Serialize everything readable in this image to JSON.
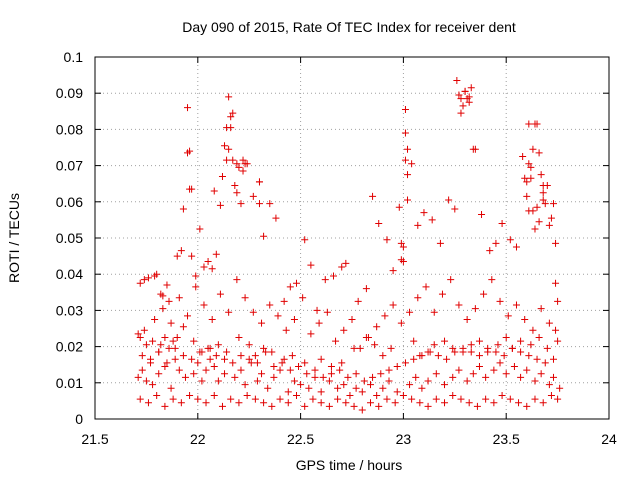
{
  "chart_data": {
    "type": "scatter",
    "title": "Day 090 of 2015, Rate Of TEC Index for receiver dent",
    "xlabel": "GPS time / hours",
    "ylabel": "ROTI / TECUs",
    "xlim": [
      21.5,
      24
    ],
    "ylim": [
      0,
      0.1
    ],
    "xticks": [
      "21.5",
      "22",
      "22.5",
      "23",
      "23.5",
      "24"
    ],
    "xtick_values": [
      21.5,
      22,
      22.5,
      23,
      23.5,
      24
    ],
    "yticks": [
      "0",
      "0.01",
      "0.02",
      "0.03",
      "0.04",
      "0.05",
      "0.06",
      "0.07",
      "0.08",
      "0.09",
      "0.1"
    ],
    "ytick_values": [
      0,
      0.01,
      0.02,
      0.03,
      0.04,
      0.05,
      0.06,
      0.07,
      0.08,
      0.09,
      0.1
    ],
    "grid": true,
    "marker": "+",
    "color": "#e00000",
    "series": [
      {
        "name": "ROTI",
        "x": [
          21.72,
          21.74,
          21.76,
          21.79,
          21.8,
          21.82,
          21.83,
          21.85,
          21.86,
          21.9,
          21.92,
          21.93,
          21.95,
          21.96,
          21.97,
          21.99,
          22.01,
          22.03,
          22.05,
          22.07,
          22.09,
          22.11,
          22.12,
          22.14,
          22.15,
          22.16,
          22.17,
          22.19,
          22.2,
          22.22,
          22.24,
          22.27,
          22.3,
          22.32,
          22.35,
          22.38,
          22.42,
          22.45,
          22.48,
          22.52,
          22.55,
          22.58,
          22.62,
          22.66,
          22.7,
          22.72,
          22.78,
          22.82,
          22.85,
          22.88,
          22.92,
          22.95,
          22.98,
          23.0,
          23.01,
          23.02,
          23.04,
          23.07,
          23.1,
          23.14,
          23.18,
          23.22,
          23.25,
          23.28,
          23.3,
          23.32,
          23.35,
          23.38,
          23.42,
          23.45,
          23.48,
          23.52,
          23.55,
          23.58,
          23.61,
          23.63,
          23.65,
          23.68,
          23.7,
          23.72,
          23.74,
          23.75,
          21.71,
          21.73,
          21.75,
          21.77,
          21.78,
          21.81,
          21.84,
          21.87,
          21.89,
          21.91,
          21.94,
          21.98,
          22.0,
          22.02,
          22.04,
          22.06,
          22.08,
          22.1,
          22.13,
          22.18,
          22.21,
          22.23,
          22.26,
          22.29,
          22.31,
          22.34,
          22.37,
          22.4,
          22.44,
          22.47,
          22.5,
          22.54,
          22.57,
          22.6,
          22.64,
          22.68,
          22.71,
          22.74,
          22.77,
          22.8,
          22.84,
          22.87,
          22.9,
          22.93,
          22.97,
          23.03,
          23.06,
          23.09,
          23.12,
          23.16,
          23.2,
          23.24,
          23.27,
          23.31,
          23.34,
          23.37,
          23.4,
          23.44,
          23.47,
          23.5,
          23.54,
          23.57,
          23.6,
          23.64,
          23.67,
          23.71,
          23.73,
          23.76,
          21.72,
          21.76,
          21.8,
          21.84,
          21.88,
          21.92,
          21.96,
          22.0,
          22.04,
          22.08,
          22.12,
          22.16,
          22.2,
          22.24,
          22.28,
          22.32,
          22.36,
          22.4,
          22.44,
          22.48,
          22.52,
          22.56,
          22.6,
          22.64,
          22.68,
          22.72,
          22.76,
          22.8,
          22.84,
          22.88,
          22.92,
          22.96,
          23.0,
          23.04,
          23.08,
          23.12,
          23.16,
          23.2,
          23.24,
          23.28,
          23.32,
          23.36,
          23.4,
          23.44,
          23.48,
          23.52,
          23.56,
          23.6,
          23.64,
          23.68,
          23.72,
          23.75,
          21.73,
          21.77,
          21.81,
          21.85,
          21.89,
          21.93,
          21.97,
          22.01,
          22.05,
          22.09,
          22.13,
          22.17,
          22.21,
          22.25,
          22.29,
          22.33,
          22.37,
          22.41,
          22.45,
          22.49,
          22.53,
          22.57,
          22.61,
          22.65,
          22.69,
          22.73,
          22.77,
          22.81,
          22.85,
          22.89,
          22.93,
          22.97,
          23.01,
          23.05,
          23.09,
          23.13,
          23.17,
          23.21,
          23.25,
          23.29,
          23.33,
          23.37,
          23.41,
          23.45,
          23.49,
          23.53,
          23.57,
          23.61,
          23.65,
          23.69,
          23.73,
          21.74,
          21.79,
          21.83,
          21.87,
          21.91,
          21.95,
          21.99,
          22.03,
          22.07,
          22.11,
          22.15,
          22.19,
          22.23,
          22.27,
          22.31,
          22.35,
          22.39,
          22.43,
          22.47,
          22.51,
          22.55,
          22.59,
          22.63,
          22.67,
          22.71,
          22.75,
          22.79,
          22.83,
          22.87,
          22.91,
          22.95,
          22.99,
          23.03,
          23.07,
          23.11,
          23.15,
          23.19,
          23.23,
          23.27,
          23.31,
          23.35,
          23.39,
          23.43,
          23.47,
          23.51,
          23.55,
          23.59,
          23.63,
          23.67,
          23.71,
          23.74,
          21.95,
          21.96,
          21.97,
          22.08,
          22.13,
          22.14,
          22.15,
          22.16,
          22.17,
          22.18,
          22.19,
          22.21,
          22.22,
          22.23,
          22.3,
          22.3,
          22.99,
          22.99,
          23.0,
          23.01,
          23.01,
          23.02,
          23.02,
          23.26,
          23.27,
          23.28,
          23.29,
          23.3,
          23.31,
          23.32,
          23.33,
          23.34,
          23.59,
          23.6,
          23.61,
          23.62,
          23.62,
          23.63,
          23.64,
          23.65,
          23.66,
          23.67,
          23.68,
          23.68,
          23.6,
          23.61,
          23.64,
          23.66,
          23.69,
          23.71,
          23.73,
          23.74,
          21.71,
          21.72,
          21.75,
          21.78,
          21.81,
          21.82,
          21.84,
          21.86,
          21.88,
          21.9,
          21.93,
          21.98,
          22.02,
          22.06,
          22.1,
          22.14,
          22.2,
          22.25,
          22.28,
          22.32,
          22.36,
          22.42,
          22.46,
          22.52,
          22.6,
          22.65,
          22.7,
          22.76,
          22.82,
          22.86,
          22.9,
          22.94,
          23.05,
          23.08,
          23.12,
          23.15,
          23.2,
          23.24,
          23.29,
          23.33,
          23.37,
          23.41,
          23.46,
          23.5,
          23.53,
          23.57,
          23.62,
          23.66,
          23.7,
          23.75
        ],
        "y": [
          0.0375,
          0.0385,
          0.039,
          0.0395,
          0.04,
          0.0345,
          0.034,
          0.037,
          0.0325,
          0.045,
          0.0465,
          0.058,
          0.0735,
          0.0635,
          0.045,
          0.0395,
          0.0525,
          0.042,
          0.0435,
          0.0415,
          0.0455,
          0.059,
          0.067,
          0.0715,
          0.0745,
          0.0805,
          0.0845,
          0.0705,
          0.0695,
          0.0715,
          0.0705,
          0.0615,
          0.0655,
          0.0505,
          0.0595,
          0.0555,
          0.0325,
          0.0365,
          0.0375,
          0.0495,
          0.0425,
          0.03,
          0.0385,
          0.0395,
          0.042,
          0.043,
          0.0325,
          0.036,
          0.0615,
          0.054,
          0.0495,
          0.041,
          0.0585,
          0.0475,
          0.079,
          0.0745,
          0.0705,
          0.0535,
          0.057,
          0.055,
          0.0485,
          0.0605,
          0.058,
          0.0845,
          0.0905,
          0.089,
          0.0745,
          0.0565,
          0.0465,
          0.0485,
          0.054,
          0.0495,
          0.0475,
          0.0725,
          0.0815,
          0.0745,
          0.0585,
          0.0625,
          0.0645,
          0.0555,
          0.0375,
          0.0325,
          0.0115,
          0.0135,
          0.0105,
          0.0155,
          0.0095,
          0.0125,
          0.0145,
          0.0085,
          0.0165,
          0.0135,
          0.0115,
          0.0125,
          0.0155,
          0.0105,
          0.0135,
          0.0165,
          0.0145,
          0.0105,
          0.0125,
          0.0115,
          0.0135,
          0.0095,
          0.0155,
          0.0105,
          0.0125,
          0.0085,
          0.0115,
          0.0135,
          0.0075,
          0.0105,
          0.0095,
          0.0085,
          0.0115,
          0.0075,
          0.0105,
          0.0085,
          0.0095,
          0.0065,
          0.0085,
          0.0075,
          0.0095,
          0.0065,
          0.0085,
          0.0105,
          0.0075,
          0.0095,
          0.0115,
          0.0085,
          0.0105,
          0.0125,
          0.0095,
          0.0115,
          0.0135,
          0.0105,
          0.0125,
          0.0145,
          0.0115,
          0.0135,
          0.0155,
          0.0125,
          0.0145,
          0.0115,
          0.0135,
          0.0105,
          0.0125,
          0.0095,
          0.0115,
          0.0085,
          0.0055,
          0.0045,
          0.0065,
          0.0035,
          0.0055,
          0.0045,
          0.0065,
          0.0055,
          0.0045,
          0.0065,
          0.0035,
          0.0055,
          0.0045,
          0.0065,
          0.0055,
          0.0045,
          0.0035,
          0.0055,
          0.0045,
          0.0065,
          0.0035,
          0.0055,
          0.0045,
          0.0035,
          0.0055,
          0.0045,
          0.0035,
          0.0025,
          0.0045,
          0.0035,
          0.0055,
          0.0045,
          0.0065,
          0.0055,
          0.0045,
          0.0035,
          0.0055,
          0.0045,
          0.0065,
          0.0055,
          0.0045,
          0.0035,
          0.0055,
          0.0045,
          0.0065,
          0.0055,
          0.0045,
          0.0035,
          0.0055,
          0.0045,
          0.0065,
          0.0055,
          0.0175,
          0.0165,
          0.0185,
          0.0155,
          0.0195,
          0.0175,
          0.0165,
          0.0185,
          0.0195,
          0.0175,
          0.0165,
          0.0155,
          0.0175,
          0.0165,
          0.0155,
          0.0185,
          0.0145,
          0.0155,
          0.0135,
          0.0145,
          0.0125,
          0.0135,
          0.0115,
          0.0125,
          0.0135,
          0.0115,
          0.0125,
          0.0105,
          0.0115,
          0.0125,
          0.0135,
          0.0145,
          0.0155,
          0.0165,
          0.0175,
          0.0185,
          0.0175,
          0.0165,
          0.0185,
          0.0195,
          0.0185,
          0.0175,
          0.0195,
          0.0185,
          0.0175,
          0.0195,
          0.0185,
          0.0175,
          0.0165,
          0.0155,
          0.0165,
          0.0245,
          0.0275,
          0.0305,
          0.0265,
          0.0335,
          0.0285,
          0.0365,
          0.0315,
          0.0275,
          0.0345,
          0.0295,
          0.0385,
          0.0335,
          0.0295,
          0.0265,
          0.0315,
          0.0285,
          0.0245,
          0.0275,
          0.0335,
          0.0235,
          0.0265,
          0.0295,
          0.0215,
          0.0245,
          0.0275,
          0.0195,
          0.0225,
          0.0255,
          0.0285,
          0.0315,
          0.0265,
          0.0295,
          0.0335,
          0.0365,
          0.0295,
          0.0345,
          0.0385,
          0.0315,
          0.0275,
          0.0305,
          0.0345,
          0.0385,
          0.0325,
          0.0285,
          0.0315,
          0.0275,
          0.0245,
          0.0305,
          0.0265,
          0.0245,
          0.086,
          0.074,
          0.0635,
          0.063,
          0.0755,
          0.0805,
          0.089,
          0.0835,
          0.0715,
          0.0645,
          0.0625,
          0.0595,
          0.0685,
          0.0705,
          0.0655,
          0.0595,
          0.0485,
          0.044,
          0.0435,
          0.0855,
          0.0715,
          0.0675,
          0.0605,
          0.0935,
          0.0895,
          0.0885,
          0.0865,
          0.0905,
          0.0885,
          0.0875,
          0.0915,
          0.0745,
          0.0665,
          0.0615,
          0.0575,
          0.0695,
          0.0665,
          0.0575,
          0.0815,
          0.0815,
          0.0735,
          0.0675,
          0.0645,
          0.0605,
          0.0655,
          0.0705,
          0.0525,
          0.0545,
          0.0595,
          0.0535,
          0.0595,
          0.0485,
          0.0235,
          0.0225,
          0.0205,
          0.0215,
          0.0185,
          0.0205,
          0.0225,
          0.0195,
          0.0215,
          0.0225,
          0.0255,
          0.0215,
          0.0185,
          0.0195,
          0.0205,
          0.0185,
          0.0225,
          0.0205,
          0.0175,
          0.0195,
          0.0185,
          0.0165,
          0.0175,
          0.0155,
          0.0165,
          0.0145,
          0.0155,
          0.0195,
          0.0225,
          0.0205,
          0.0175,
          0.0195,
          0.0215,
          0.0175,
          0.0185,
          0.0205,
          0.0215,
          0.0195,
          0.0185,
          0.0205,
          0.0215,
          0.0185,
          0.0205,
          0.0225,
          0.0195,
          0.0215,
          0.0205,
          0.0225,
          0.0195,
          0.0215
        ]
      }
    ]
  }
}
